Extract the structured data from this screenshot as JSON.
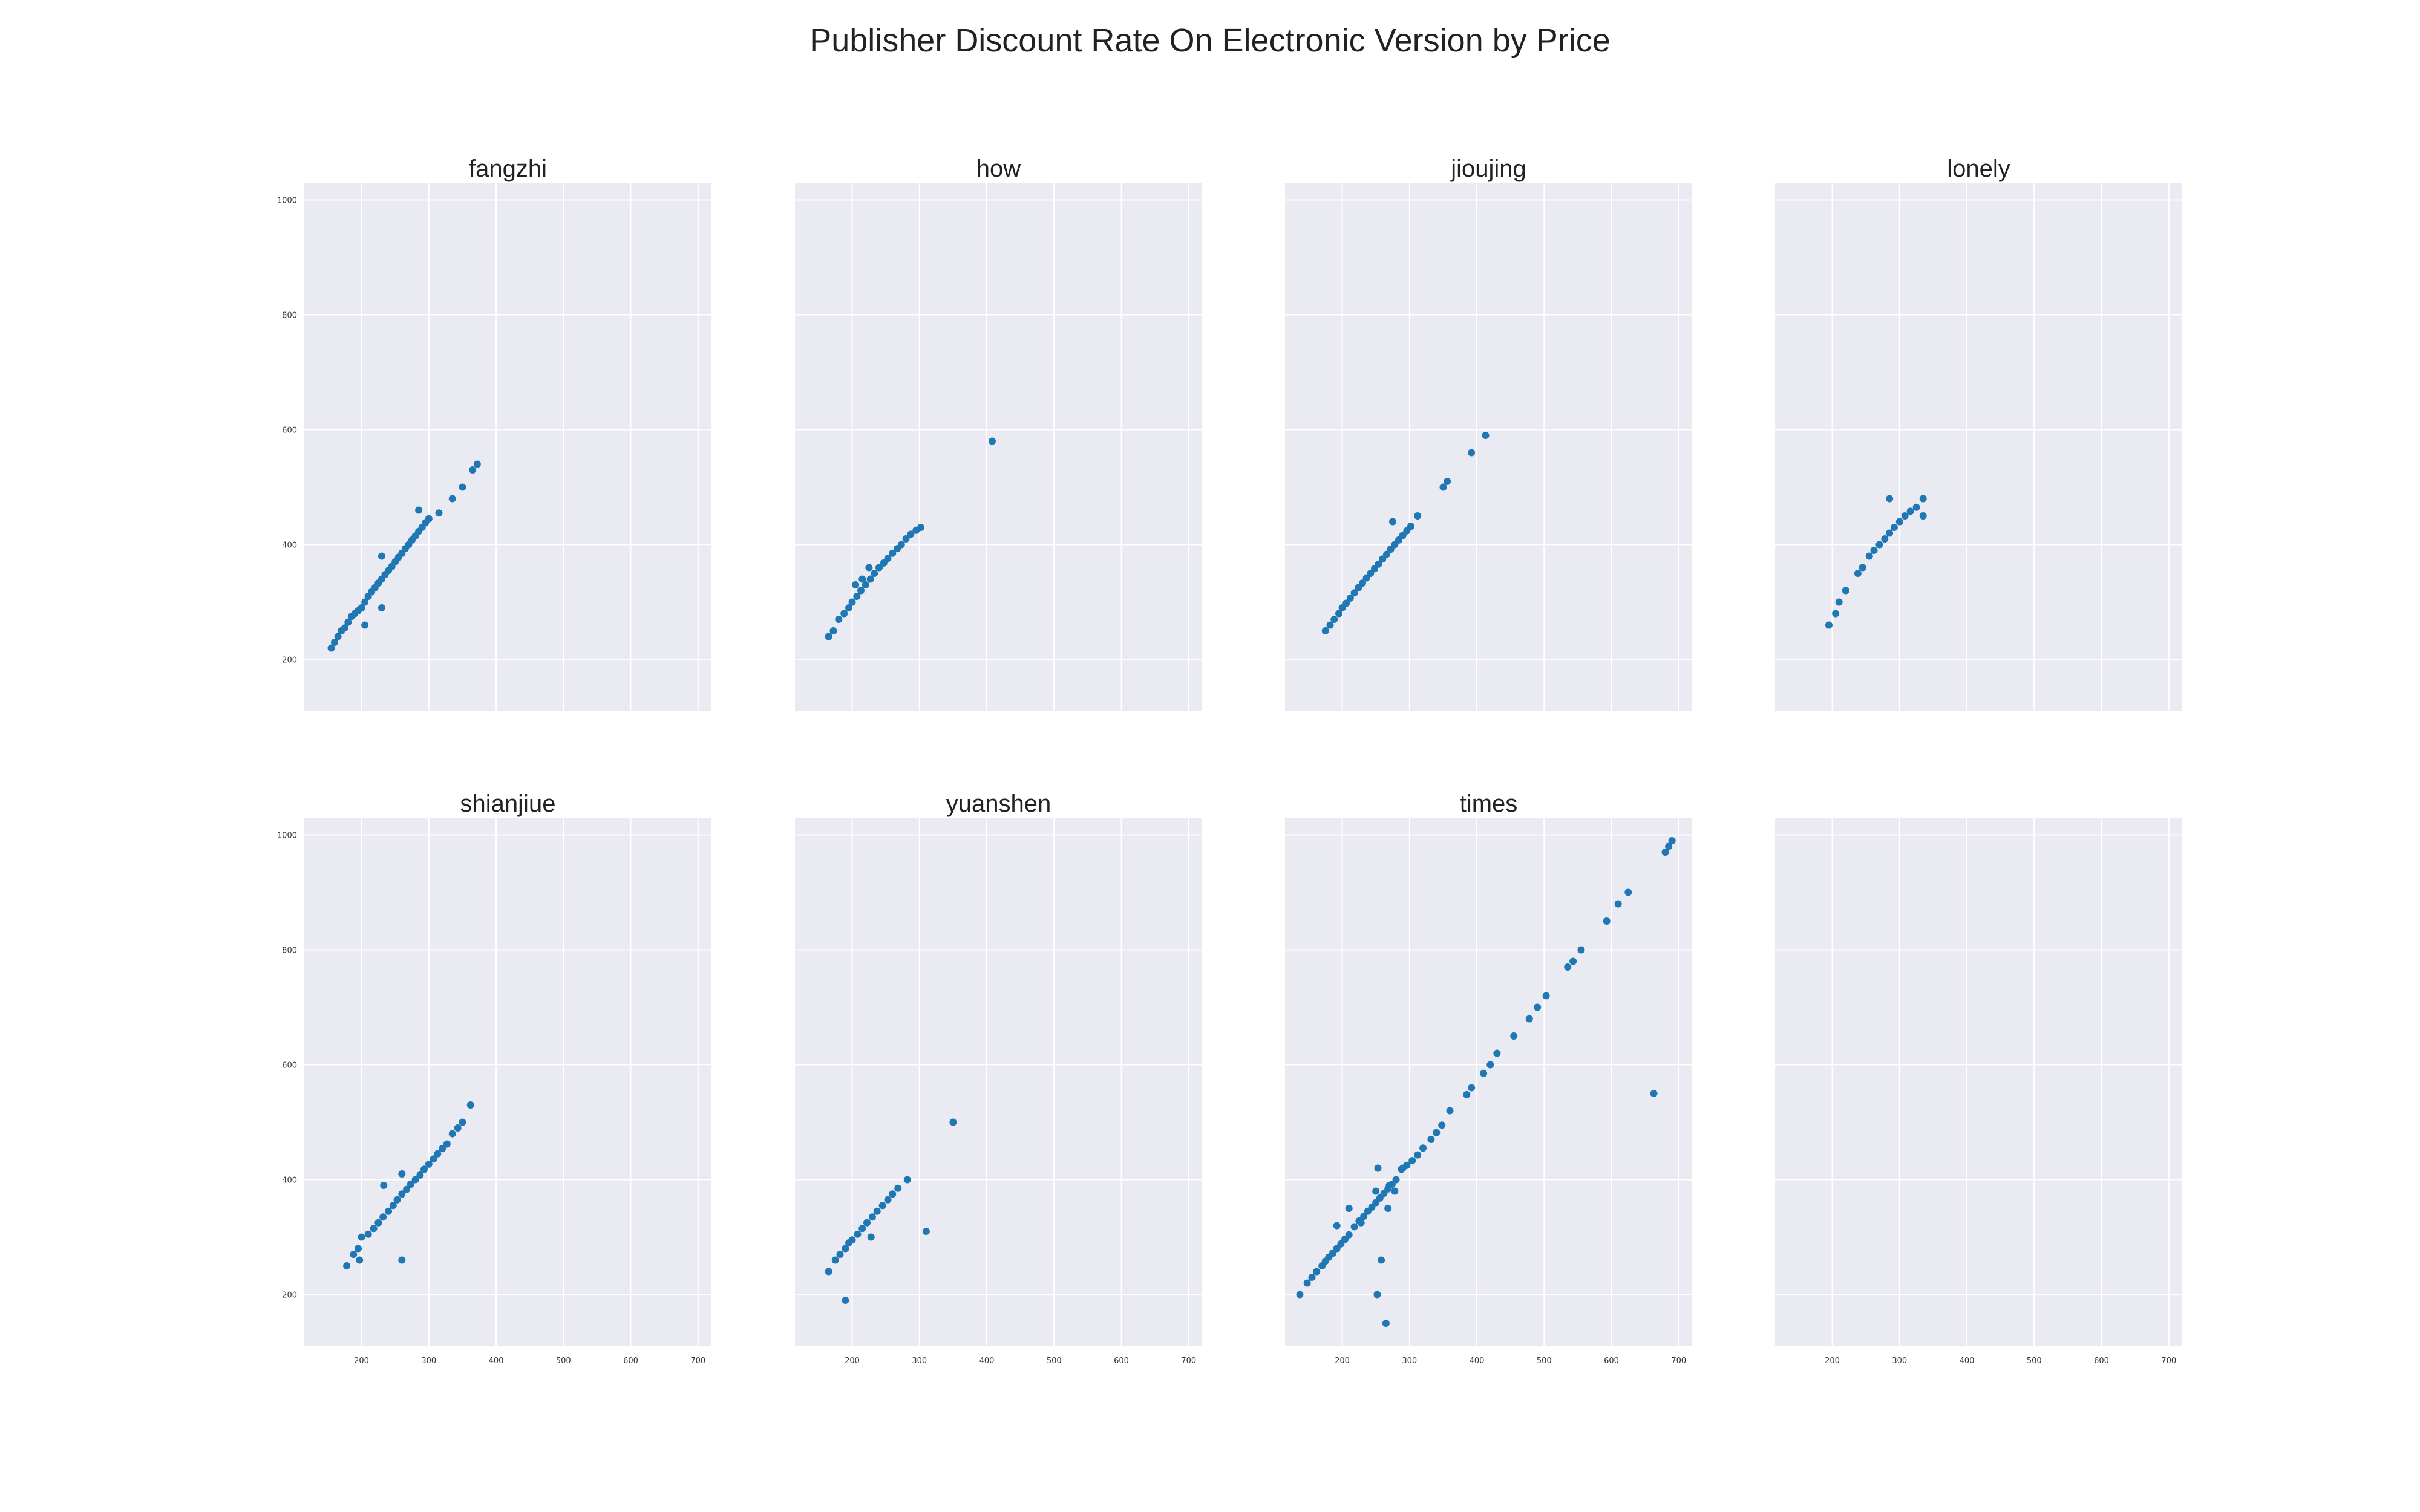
{
  "chart_data": {
    "type": "scatter",
    "title": "Publisher Discount Rate On Electronic Version by Price",
    "xlabel": "",
    "ylabel": "",
    "xlim": [
      115,
      720
    ],
    "ylim": [
      110,
      1030
    ],
    "x_ticks": [
      200,
      300,
      400,
      500,
      600,
      700
    ],
    "y_ticks": [
      200,
      400,
      600,
      800,
      1000
    ],
    "grid": true,
    "shared_axes": true,
    "layout": "2x4 facet grid",
    "colors": {
      "background": "#ffffff",
      "panel": "#eaeaf2",
      "grid": "#ffffff",
      "marker": "#1f77b4"
    },
    "panels": [
      {
        "title": "fangzhi",
        "points": [
          [
            155,
            220
          ],
          [
            160,
            230
          ],
          [
            165,
            240
          ],
          [
            170,
            250
          ],
          [
            175,
            255
          ],
          [
            180,
            265
          ],
          [
            185,
            275
          ],
          [
            190,
            280
          ],
          [
            195,
            285
          ],
          [
            200,
            290
          ],
          [
            205,
            300
          ],
          [
            210,
            310
          ],
          [
            215,
            318
          ],
          [
            220,
            325
          ],
          [
            225,
            333
          ],
          [
            230,
            340
          ],
          [
            235,
            348
          ],
          [
            240,
            355
          ],
          [
            245,
            362
          ],
          [
            250,
            370
          ],
          [
            255,
            378
          ],
          [
            260,
            385
          ],
          [
            265,
            393
          ],
          [
            270,
            400
          ],
          [
            275,
            408
          ],
          [
            280,
            415
          ],
          [
            285,
            423
          ],
          [
            290,
            430
          ],
          [
            295,
            438
          ],
          [
            300,
            445
          ],
          [
            315,
            455
          ],
          [
            335,
            480
          ],
          [
            350,
            500
          ],
          [
            365,
            530
          ],
          [
            372,
            540
          ],
          [
            230,
            380
          ],
          [
            285,
            460
          ],
          [
            230,
            290
          ],
          [
            205,
            260
          ]
        ]
      },
      {
        "title": "how",
        "points": [
          [
            165,
            240
          ],
          [
            172,
            250
          ],
          [
            180,
            270
          ],
          [
            188,
            280
          ],
          [
            195,
            290
          ],
          [
            200,
            300
          ],
          [
            207,
            310
          ],
          [
            213,
            320
          ],
          [
            220,
            330
          ],
          [
            227,
            340
          ],
          [
            233,
            350
          ],
          [
            240,
            360
          ],
          [
            247,
            368
          ],
          [
            253,
            376
          ],
          [
            260,
            385
          ],
          [
            267,
            393
          ],
          [
            273,
            400
          ],
          [
            280,
            410
          ],
          [
            287,
            418
          ],
          [
            295,
            425
          ],
          [
            302,
            430
          ],
          [
            205,
            330
          ],
          [
            215,
            340
          ],
          [
            225,
            360
          ],
          [
            408,
            580
          ]
        ]
      },
      {
        "title": "jioujing",
        "points": [
          [
            175,
            250
          ],
          [
            182,
            260
          ],
          [
            188,
            270
          ],
          [
            195,
            280
          ],
          [
            200,
            290
          ],
          [
            206,
            298
          ],
          [
            212,
            307
          ],
          [
            218,
            316
          ],
          [
            224,
            325
          ],
          [
            230,
            333
          ],
          [
            236,
            342
          ],
          [
            242,
            350
          ],
          [
            248,
            358
          ],
          [
            254,
            366
          ],
          [
            260,
            375
          ],
          [
            266,
            383
          ],
          [
            272,
            392
          ],
          [
            278,
            400
          ],
          [
            284,
            408
          ],
          [
            290,
            416
          ],
          [
            296,
            424
          ],
          [
            302,
            432
          ],
          [
            312,
            450
          ],
          [
            275,
            440
          ],
          [
            350,
            500
          ],
          [
            356,
            510
          ],
          [
            392,
            560
          ],
          [
            413,
            590
          ]
        ]
      },
      {
        "title": "lonely",
        "points": [
          [
            195,
            260
          ],
          [
            205,
            280
          ],
          [
            210,
            300
          ],
          [
            220,
            320
          ],
          [
            238,
            350
          ],
          [
            245,
            360
          ],
          [
            255,
            380
          ],
          [
            262,
            390
          ],
          [
            270,
            400
          ],
          [
            278,
            410
          ],
          [
            285,
            420
          ],
          [
            292,
            430
          ],
          [
            300,
            440
          ],
          [
            308,
            450
          ],
          [
            316,
            458
          ],
          [
            325,
            465
          ],
          [
            285,
            480
          ],
          [
            335,
            480
          ],
          [
            335,
            450
          ]
        ]
      },
      {
        "title": "shianjiue",
        "points": [
          [
            178,
            250
          ],
          [
            188,
            270
          ],
          [
            195,
            280
          ],
          [
            197,
            260
          ],
          [
            200,
            300
          ],
          [
            210,
            305
          ],
          [
            218,
            315
          ],
          [
            225,
            325
          ],
          [
            232,
            335
          ],
          [
            240,
            345
          ],
          [
            247,
            355
          ],
          [
            253,
            365
          ],
          [
            260,
            375
          ],
          [
            267,
            383
          ],
          [
            273,
            392
          ],
          [
            280,
            400
          ],
          [
            287,
            408
          ],
          [
            293,
            418
          ],
          [
            300,
            427
          ],
          [
            307,
            436
          ],
          [
            313,
            445
          ],
          [
            320,
            454
          ],
          [
            327,
            462
          ],
          [
            335,
            480
          ],
          [
            343,
            490
          ],
          [
            350,
            500
          ],
          [
            362,
            530
          ],
          [
            233,
            390
          ],
          [
            260,
            410
          ],
          [
            260,
            260
          ]
        ]
      },
      {
        "title": "yuanshen",
        "points": [
          [
            165,
            240
          ],
          [
            175,
            260
          ],
          [
            182,
            270
          ],
          [
            190,
            280
          ],
          [
            195,
            290
          ],
          [
            200,
            295
          ],
          [
            208,
            305
          ],
          [
            215,
            315
          ],
          [
            222,
            325
          ],
          [
            230,
            335
          ],
          [
            237,
            345
          ],
          [
            245,
            355
          ],
          [
            253,
            365
          ],
          [
            260,
            375
          ],
          [
            268,
            385
          ],
          [
            282,
            400
          ],
          [
            228,
            300
          ],
          [
            190,
            190
          ],
          [
            310,
            310
          ],
          [
            350,
            500
          ]
        ]
      },
      {
        "title": "times",
        "points": [
          [
            137,
            200
          ],
          [
            148,
            220
          ],
          [
            155,
            230
          ],
          [
            162,
            240
          ],
          [
            170,
            250
          ],
          [
            175,
            258
          ],
          [
            180,
            265
          ],
          [
            186,
            272
          ],
          [
            192,
            280
          ],
          [
            198,
            288
          ],
          [
            204,
            296
          ],
          [
            210,
            304
          ],
          [
            218,
            318
          ],
          [
            225,
            328
          ],
          [
            232,
            336
          ],
          [
            238,
            345
          ],
          [
            244,
            352
          ],
          [
            250,
            360
          ],
          [
            256,
            368
          ],
          [
            262,
            376
          ],
          [
            268,
            384
          ],
          [
            274,
            392
          ],
          [
            280,
            400
          ],
          [
            288,
            418
          ],
          [
            296,
            425
          ],
          [
            304,
            433
          ],
          [
            312,
            443
          ],
          [
            320,
            455
          ],
          [
            332,
            470
          ],
          [
            340,
            482
          ],
          [
            348,
            495
          ],
          [
            360,
            520
          ],
          [
            385,
            548
          ],
          [
            392,
            560
          ],
          [
            410,
            585
          ],
          [
            420,
            600
          ],
          [
            430,
            620
          ],
          [
            455,
            650
          ],
          [
            478,
            680
          ],
          [
            490,
            700
          ],
          [
            503,
            720
          ],
          [
            535,
            770
          ],
          [
            543,
            780
          ],
          [
            555,
            800
          ],
          [
            593,
            850
          ],
          [
            610,
            880
          ],
          [
            625,
            900
          ],
          [
            680,
            970
          ],
          [
            685,
            980
          ],
          [
            690,
            990
          ],
          [
            663,
            550
          ],
          [
            192,
            320
          ],
          [
            210,
            350
          ],
          [
            228,
            325
          ],
          [
            253,
            420
          ],
          [
            250,
            380
          ],
          [
            268,
            350
          ],
          [
            258,
            260
          ],
          [
            252,
            200
          ],
          [
            265,
            150
          ],
          [
            270,
            390
          ],
          [
            278,
            380
          ],
          [
            290,
            420
          ]
        ]
      },
      {
        "title": "",
        "points": []
      }
    ]
  }
}
